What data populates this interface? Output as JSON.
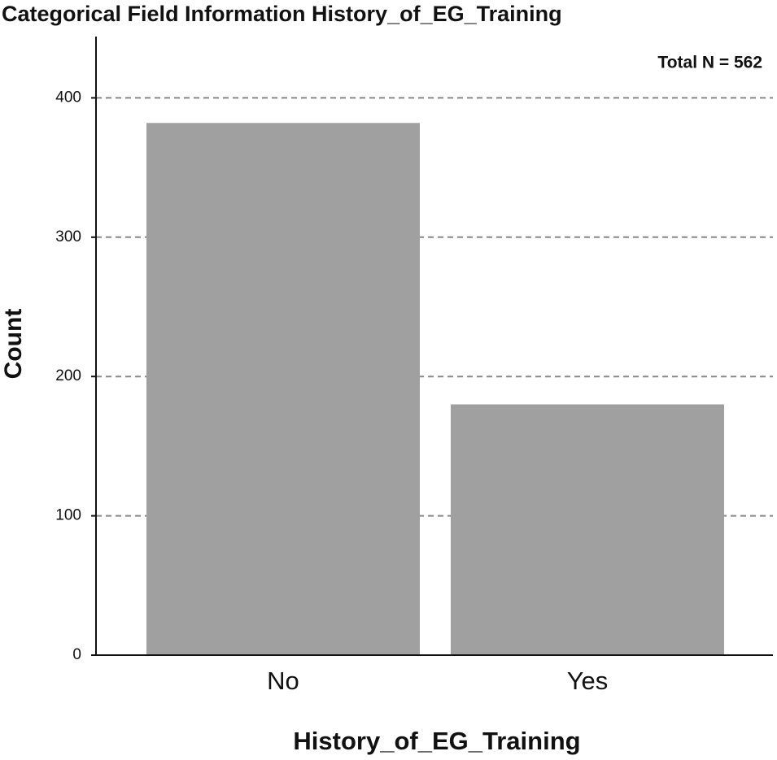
{
  "chart_data": {
    "type": "bar",
    "title": "Categorical Field Information History_of_EG_Training",
    "annotation": "Total N =  562",
    "x_label": "History_of_EG_Training",
    "y_label": "Count",
    "categories": [
      "No",
      "Yes"
    ],
    "values": [
      382,
      180
    ],
    "color": "#a0a0a0",
    "ylim": [
      0,
      444
    ],
    "yticks": [
      0,
      100,
      200,
      300,
      400
    ],
    "grid": true
  }
}
